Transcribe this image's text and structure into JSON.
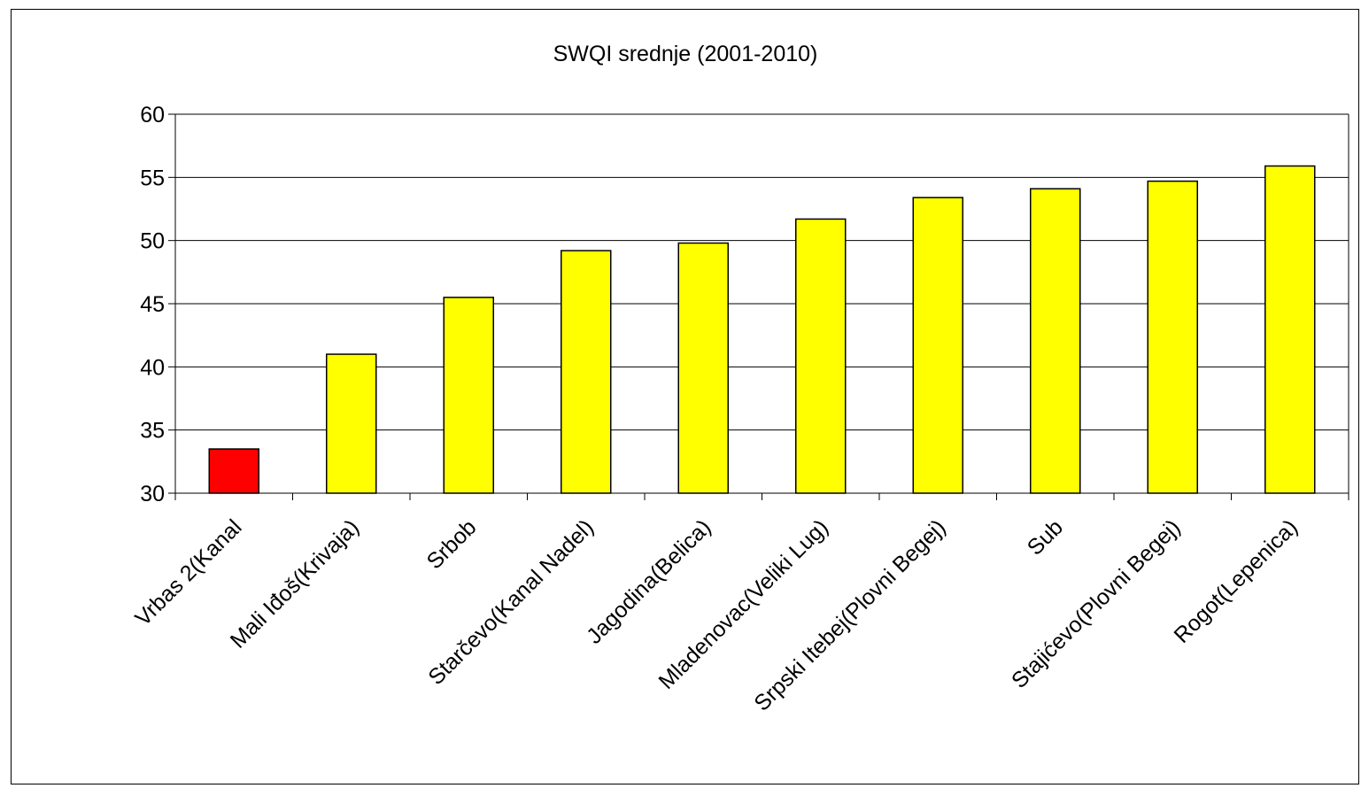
{
  "chart_data": {
    "type": "bar",
    "title": "SWQI srednje (2001-2010)",
    "xlabel": "",
    "ylabel": "",
    "categories": [
      "Vrbas 2(Kanal",
      "Mali Iđoš(Krivaja)",
      "Srbob",
      "Starčevo(Kanal Nadel)",
      "Jagodina(Belica)",
      "Mladenovac(Veliki Lug)",
      "Srpski Itebej(Plovni Begej)",
      "Sub",
      "Stajićevo(Plovni Begej)",
      "Rogot(Lepenica)"
    ],
    "values": [
      33.5,
      41.0,
      45.5,
      49.2,
      49.8,
      51.7,
      53.4,
      54.1,
      54.7,
      55.9
    ],
    "bar_colors": [
      "#ff0000",
      "#ffff00",
      "#ffff00",
      "#ffff00",
      "#ffff00",
      "#ffff00",
      "#ffff00",
      "#ffff00",
      "#ffff00",
      "#ffff00"
    ],
    "ylim": [
      30,
      60
    ],
    "yticks": [
      30,
      35,
      40,
      45,
      50,
      55,
      60
    ],
    "grid": true,
    "legend": "none"
  }
}
